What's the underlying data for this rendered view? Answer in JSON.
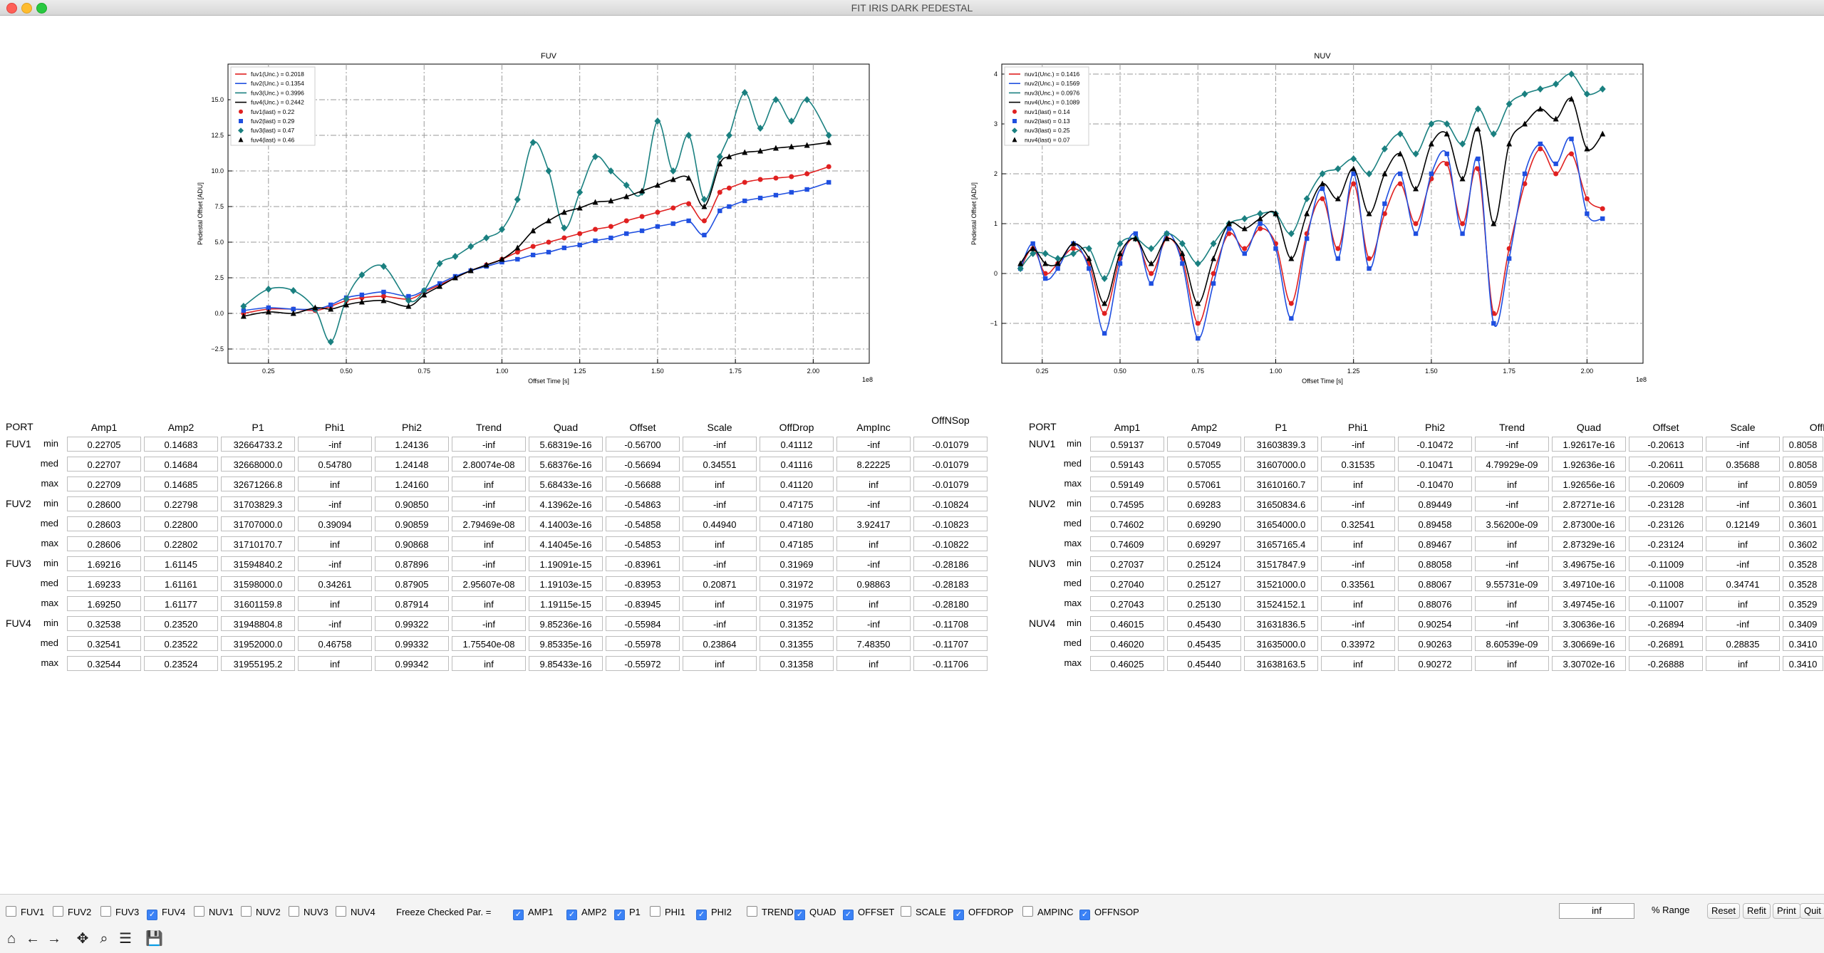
{
  "window": {
    "title": "FIT IRIS DARK PEDESTAL"
  },
  "plots": {
    "fuv": {
      "title": "FUV",
      "xlabel": "Offset Time [s]",
      "ylabel": "Pedestal Offset [ADU]",
      "xexp": "1e8",
      "xticks": [
        "0.25",
        "0.50",
        "0.75",
        "1.00",
        "1.25",
        "1.50",
        "1.75",
        "2.00"
      ],
      "yticks": [
        "−2.5",
        "0.0",
        "2.5",
        "5.0",
        "7.5",
        "10.0",
        "12.5",
        "15.0"
      ],
      "legend": [
        "fuv1(Unc.) = 0.2018",
        "fuv2(Unc.) = 0.1354",
        "fuv3(Unc.) = 0.3996",
        "fuv4(Unc.) = 0.2442",
        "fuv1(last) = 0.22",
        "fuv2(last) = 0.29",
        "fuv3(last) = 0.47",
        "fuv4(last) = 0.46"
      ]
    },
    "nuv": {
      "title": "NUV",
      "xlabel": "Offset Time [s]",
      "ylabel": "Pedestal Offset [ADU]",
      "xexp": "1e8",
      "xticks": [
        "0.25",
        "0.50",
        "0.75",
        "1.00",
        "1.25",
        "1.50",
        "1.75",
        "2.00"
      ],
      "yticks": [
        "−1",
        "0",
        "1",
        "2",
        "3",
        "4"
      ],
      "legend": [
        "nuv1(Unc.) = 0.1416",
        "nuv2(Unc.) = 0.1569",
        "nuv3(Unc.) = 0.0976",
        "nuv4(Unc.) = 0.1089",
        "nuv1(last) = 0.14",
        "nuv2(last) = 0.13",
        "nuv3(last) = 0.25",
        "nuv4(last) = 0.07"
      ]
    }
  },
  "colors": {
    "c1": "#e02020",
    "c2": "#1f4fe0",
    "c3": "#1a8080",
    "c4": "#000000"
  },
  "chart_data": [
    {
      "type": "scatter",
      "title": "FUV",
      "xlabel": "Offset Time [s]",
      "ylabel": "Pedestal Offset [ADU]",
      "x_scale": "1e8",
      "xlim": [
        0.12,
        2.18
      ],
      "ylim": [
        -3.5,
        17.5
      ],
      "x": [
        0.17,
        0.25,
        0.33,
        0.4,
        0.45,
        0.5,
        0.55,
        0.62,
        0.7,
        0.75,
        0.8,
        0.85,
        0.9,
        0.95,
        1.0,
        1.05,
        1.1,
        1.15,
        1.2,
        1.25,
        1.3,
        1.35,
        1.4,
        1.45,
        1.5,
        1.55,
        1.6,
        1.65,
        1.7,
        1.73,
        1.78,
        1.83,
        1.88,
        1.93,
        1.98,
        2.05
      ],
      "series": [
        {
          "name": "fuv1",
          "values": [
            0.0,
            0.3,
            0.3,
            0.2,
            0.5,
            0.9,
            1.1,
            1.2,
            1.0,
            1.5,
            2.0,
            2.5,
            3.0,
            3.4,
            3.8,
            4.3,
            4.7,
            5.0,
            5.3,
            5.6,
            5.9,
            6.1,
            6.5,
            6.8,
            7.1,
            7.4,
            7.7,
            6.5,
            8.5,
            8.8,
            9.2,
            9.4,
            9.5,
            9.6,
            9.8,
            10.3
          ]
        },
        {
          "name": "fuv2",
          "values": [
            0.2,
            0.4,
            0.3,
            0.3,
            0.6,
            1.1,
            1.3,
            1.5,
            1.2,
            1.6,
            2.1,
            2.6,
            3.0,
            3.3,
            3.6,
            3.8,
            4.1,
            4.3,
            4.6,
            4.8,
            5.1,
            5.3,
            5.6,
            5.8,
            6.1,
            6.3,
            6.5,
            5.5,
            7.2,
            7.5,
            7.9,
            8.1,
            8.3,
            8.5,
            8.7,
            9.2
          ]
        },
        {
          "name": "fuv3",
          "values": [
            0.5,
            1.7,
            1.6,
            0.3,
            -2.0,
            1.0,
            2.7,
            3.3,
            0.9,
            1.6,
            3.5,
            4.0,
            4.7,
            5.3,
            5.9,
            8.0,
            12.0,
            10.0,
            6.0,
            8.5,
            11.0,
            10.0,
            9.0,
            8.5,
            13.5,
            10.0,
            12.5,
            8.0,
            11.0,
            12.5,
            15.5,
            13.0,
            15.0,
            13.5,
            15.0,
            12.5
          ]
        },
        {
          "name": "fuv4",
          "values": [
            -0.2,
            0.1,
            0.0,
            0.4,
            0.3,
            0.6,
            0.8,
            0.9,
            0.5,
            1.3,
            1.9,
            2.5,
            3.0,
            3.4,
            3.8,
            4.6,
            5.8,
            6.5,
            7.1,
            7.4,
            7.8,
            7.9,
            8.2,
            8.6,
            9.0,
            9.4,
            9.5,
            7.5,
            10.5,
            11.0,
            11.3,
            11.4,
            11.6,
            11.7,
            11.8,
            12.0
          ]
        }
      ]
    },
    {
      "type": "scatter",
      "title": "NUV",
      "xlabel": "Offset Time [s]",
      "ylabel": "Pedestal Offset [ADU]",
      "x_scale": "1e8",
      "xlim": [
        0.12,
        2.18
      ],
      "ylim": [
        -1.8,
        4.2
      ],
      "x": [
        0.18,
        0.22,
        0.26,
        0.3,
        0.35,
        0.4,
        0.45,
        0.5,
        0.55,
        0.6,
        0.65,
        0.7,
        0.75,
        0.8,
        0.85,
        0.9,
        0.95,
        1.0,
        1.05,
        1.1,
        1.15,
        1.2,
        1.25,
        1.3,
        1.35,
        1.4,
        1.45,
        1.5,
        1.55,
        1.6,
        1.65,
        1.7,
        1.75,
        1.8,
        1.85,
        1.9,
        1.95,
        2.0,
        2.05
      ],
      "series": [
        {
          "name": "nuv1",
          "values": [
            0.1,
            0.5,
            0.0,
            0.2,
            0.5,
            0.2,
            -0.8,
            0.3,
            0.7,
            0.0,
            0.7,
            0.3,
            -1.0,
            0.0,
            0.8,
            0.5,
            0.9,
            0.6,
            -0.6,
            0.8,
            1.5,
            0.5,
            1.8,
            0.3,
            1.2,
            1.8,
            1.0,
            1.9,
            2.2,
            1.0,
            2.1,
            -0.8,
            0.5,
            1.8,
            2.5,
            2.0,
            2.4,
            1.5,
            1.3
          ]
        },
        {
          "name": "nuv2",
          "values": [
            0.1,
            0.6,
            -0.1,
            0.1,
            0.6,
            0.1,
            -1.2,
            0.2,
            0.8,
            -0.2,
            0.8,
            0.2,
            -1.3,
            -0.2,
            0.9,
            0.4,
            1.0,
            0.5,
            -0.9,
            0.7,
            1.7,
            0.3,
            2.0,
            0.1,
            1.4,
            2.0,
            0.8,
            2.0,
            2.4,
            0.8,
            2.3,
            -1.0,
            0.3,
            2.0,
            2.6,
            2.2,
            2.7,
            1.2,
            1.1
          ]
        },
        {
          "name": "nuv3",
          "values": [
            0.1,
            0.4,
            0.4,
            0.3,
            0.4,
            0.5,
            -0.1,
            0.6,
            0.7,
            0.5,
            0.8,
            0.6,
            0.2,
            0.6,
            1.0,
            1.1,
            1.2,
            1.2,
            0.8,
            1.5,
            2.0,
            2.1,
            2.3,
            2.0,
            2.5,
            2.8,
            2.4,
            3.0,
            3.0,
            2.6,
            3.3,
            2.8,
            3.4,
            3.6,
            3.7,
            3.8,
            4.0,
            3.6,
            3.7
          ]
        },
        {
          "name": "nuv4",
          "values": [
            0.2,
            0.5,
            0.2,
            0.2,
            0.6,
            0.3,
            -0.6,
            0.4,
            0.7,
            0.2,
            0.7,
            0.4,
            -0.6,
            0.3,
            1.0,
            0.9,
            1.1,
            1.2,
            0.3,
            1.2,
            1.8,
            1.5,
            2.1,
            1.2,
            2.0,
            2.4,
            1.7,
            2.6,
            2.8,
            1.9,
            2.9,
            1.0,
            2.6,
            3.0,
            3.3,
            3.1,
            3.5,
            2.5,
            2.8
          ]
        }
      ]
    }
  ],
  "table": {
    "port_label": "PORT",
    "headers_fuv": [
      "Amp1",
      "Amp2",
      "P1",
      "Phi1",
      "Phi2",
      "Trend",
      "Quad",
      "Offset",
      "Scale",
      "OffDrop",
      "AmpInc",
      "OffNSop"
    ],
    "headers_nuv": [
      "Amp1",
      "Amp2",
      "P1",
      "Phi1",
      "Phi2",
      "Trend",
      "Quad",
      "Offset",
      "Scale",
      "OffD"
    ],
    "row_labels": [
      "min",
      "med",
      "max"
    ],
    "fuv": [
      {
        "port": "FUV1",
        "rows": [
          [
            "0.22705",
            "0.14683",
            "32664733.2",
            "-inf",
            "1.24136",
            "-inf",
            "5.68319e-16",
            "-0.56700",
            "-inf",
            "0.41112",
            "-inf",
            "-0.01079"
          ],
          [
            "0.22707",
            "0.14684",
            "32668000.0",
            "0.54780",
            "1.24148",
            "2.80074e-08",
            "5.68376e-16",
            "-0.56694",
            "0.34551",
            "0.41116",
            "8.22225",
            "-0.01079"
          ],
          [
            "0.22709",
            "0.14685",
            "32671266.8",
            "inf",
            "1.24160",
            "inf",
            "5.68433e-16",
            "-0.56688",
            "inf",
            "0.41120",
            "inf",
            "-0.01079"
          ]
        ]
      },
      {
        "port": "FUV2",
        "rows": [
          [
            "0.28600",
            "0.22798",
            "31703829.3",
            "-inf",
            "0.90850",
            "-inf",
            "4.13962e-16",
            "-0.54863",
            "-inf",
            "0.47175",
            "-inf",
            "-0.10824"
          ],
          [
            "0.28603",
            "0.22800",
            "31707000.0",
            "0.39094",
            "0.90859",
            "2.79469e-08",
            "4.14003e-16",
            "-0.54858",
            "0.44940",
            "0.47180",
            "3.92417",
            "-0.10823"
          ],
          [
            "0.28606",
            "0.22802",
            "31710170.7",
            "inf",
            "0.90868",
            "inf",
            "4.14045e-16",
            "-0.54853",
            "inf",
            "0.47185",
            "inf",
            "-0.10822"
          ]
        ]
      },
      {
        "port": "FUV3",
        "rows": [
          [
            "1.69216",
            "1.61145",
            "31594840.2",
            "-inf",
            "0.87896",
            "-inf",
            "1.19091e-15",
            "-0.83961",
            "-inf",
            "0.31969",
            "-inf",
            "-0.28186"
          ],
          [
            "1.69233",
            "1.61161",
            "31598000.0",
            "0.34261",
            "0.87905",
            "2.95607e-08",
            "1.19103e-15",
            "-0.83953",
            "0.20871",
            "0.31972",
            "0.98863",
            "-0.28183"
          ],
          [
            "1.69250",
            "1.61177",
            "31601159.8",
            "inf",
            "0.87914",
            "inf",
            "1.19115e-15",
            "-0.83945",
            "inf",
            "0.31975",
            "inf",
            "-0.28180"
          ]
        ]
      },
      {
        "port": "FUV4",
        "rows": [
          [
            "0.32538",
            "0.23520",
            "31948804.8",
            "-inf",
            "0.99322",
            "-inf",
            "9.85236e-16",
            "-0.55984",
            "-inf",
            "0.31352",
            "-inf",
            "-0.11708"
          ],
          [
            "0.32541",
            "0.23522",
            "31952000.0",
            "0.46758",
            "0.99332",
            "1.75540e-08",
            "9.85335e-16",
            "-0.55978",
            "0.23864",
            "0.31355",
            "7.48350",
            "-0.11707"
          ],
          [
            "0.32544",
            "0.23524",
            "31955195.2",
            "inf",
            "0.99342",
            "inf",
            "9.85433e-16",
            "-0.55972",
            "inf",
            "0.31358",
            "inf",
            "-0.11706"
          ]
        ]
      }
    ],
    "nuv": [
      {
        "port": "NUV1",
        "rows": [
          [
            "0.59137",
            "0.57049",
            "31603839.3",
            "-inf",
            "-0.10472",
            "-inf",
            "1.92617e-16",
            "-0.20613",
            "-inf",
            "0.8058"
          ],
          [
            "0.59143",
            "0.57055",
            "31607000.0",
            "0.31535",
            "-0.10471",
            "4.79929e-09",
            "1.92636e-16",
            "-0.20611",
            "0.35688",
            "0.8058"
          ],
          [
            "0.59149",
            "0.57061",
            "31610160.7",
            "inf",
            "-0.10470",
            "inf",
            "1.92656e-16",
            "-0.20609",
            "inf",
            "0.8059"
          ]
        ]
      },
      {
        "port": "NUV2",
        "rows": [
          [
            "0.74595",
            "0.69283",
            "31650834.6",
            "-inf",
            "0.89449",
            "-inf",
            "2.87271e-16",
            "-0.23128",
            "-inf",
            "0.3601"
          ],
          [
            "0.74602",
            "0.69290",
            "31654000.0",
            "0.32541",
            "0.89458",
            "3.56200e-09",
            "2.87300e-16",
            "-0.23126",
            "0.12149",
            "0.3601"
          ],
          [
            "0.74609",
            "0.69297",
            "31657165.4",
            "inf",
            "0.89467",
            "inf",
            "2.87329e-16",
            "-0.23124",
            "inf",
            "0.3602"
          ]
        ]
      },
      {
        "port": "NUV3",
        "rows": [
          [
            "0.27037",
            "0.25124",
            "31517847.9",
            "-inf",
            "0.88058",
            "-inf",
            "3.49675e-16",
            "-0.11009",
            "-inf",
            "0.3528"
          ],
          [
            "0.27040",
            "0.25127",
            "31521000.0",
            "0.33561",
            "0.88067",
            "9.55731e-09",
            "3.49710e-16",
            "-0.11008",
            "0.34741",
            "0.3528"
          ],
          [
            "0.27043",
            "0.25130",
            "31524152.1",
            "inf",
            "0.88076",
            "inf",
            "3.49745e-16",
            "-0.11007",
            "inf",
            "0.3529"
          ]
        ]
      },
      {
        "port": "NUV4",
        "rows": [
          [
            "0.46015",
            "0.45430",
            "31631836.5",
            "-inf",
            "0.90254",
            "-inf",
            "3.30636e-16",
            "-0.26894",
            "-inf",
            "0.3409"
          ],
          [
            "0.46020",
            "0.45435",
            "31635000.0",
            "0.33972",
            "0.90263",
            "8.60539e-09",
            "3.30669e-16",
            "-0.26891",
            "0.28835",
            "0.3410"
          ],
          [
            "0.46025",
            "0.45440",
            "31638163.5",
            "inf",
            "0.90272",
            "inf",
            "3.30702e-16",
            "-0.26888",
            "inf",
            "0.3410"
          ]
        ]
      }
    ]
  },
  "controls": {
    "port_checks": [
      {
        "label": "FUV1",
        "checked": false
      },
      {
        "label": "FUV2",
        "checked": false
      },
      {
        "label": "FUV3",
        "checked": false
      },
      {
        "label": "FUV4",
        "checked": true
      },
      {
        "label": "NUV1",
        "checked": false
      },
      {
        "label": "NUV2",
        "checked": false
      },
      {
        "label": "NUV3",
        "checked": false
      },
      {
        "label": "NUV4",
        "checked": false
      }
    ],
    "freeze_label": "Freeze Checked Par. =",
    "param_checks": [
      {
        "label": "AMP1",
        "checked": true
      },
      {
        "label": "AMP2",
        "checked": true
      },
      {
        "label": "P1",
        "checked": true
      },
      {
        "label": "PHI1",
        "checked": false
      },
      {
        "label": "PHI2",
        "checked": true
      },
      {
        "label": "TREND",
        "checked": false
      },
      {
        "label": "QUAD",
        "checked": true
      },
      {
        "label": "OFFSET",
        "checked": true
      },
      {
        "label": "SCALE",
        "checked": false
      },
      {
        "label": "OFFDROP",
        "checked": true
      },
      {
        "label": "AMPINC",
        "checked": false
      },
      {
        "label": "OFFNSOP",
        "checked": true
      }
    ],
    "range_value": "inf",
    "range_label": "% Range",
    "buttons": [
      "Reset",
      "Refit",
      "Print",
      "Quit"
    ]
  },
  "toolbar": [
    {
      "icon": "home-icon",
      "glyph": "⌂"
    },
    {
      "icon": "back-arrow-icon",
      "glyph": "←"
    },
    {
      "icon": "forward-arrow-icon",
      "glyph": "→"
    },
    {
      "icon": "pan-icon",
      "glyph": "✥"
    },
    {
      "icon": "zoom-icon",
      "glyph": "⌕"
    },
    {
      "icon": "settings-sliders-icon",
      "glyph": "☰"
    },
    {
      "icon": "save-icon",
      "glyph": "💾"
    }
  ]
}
